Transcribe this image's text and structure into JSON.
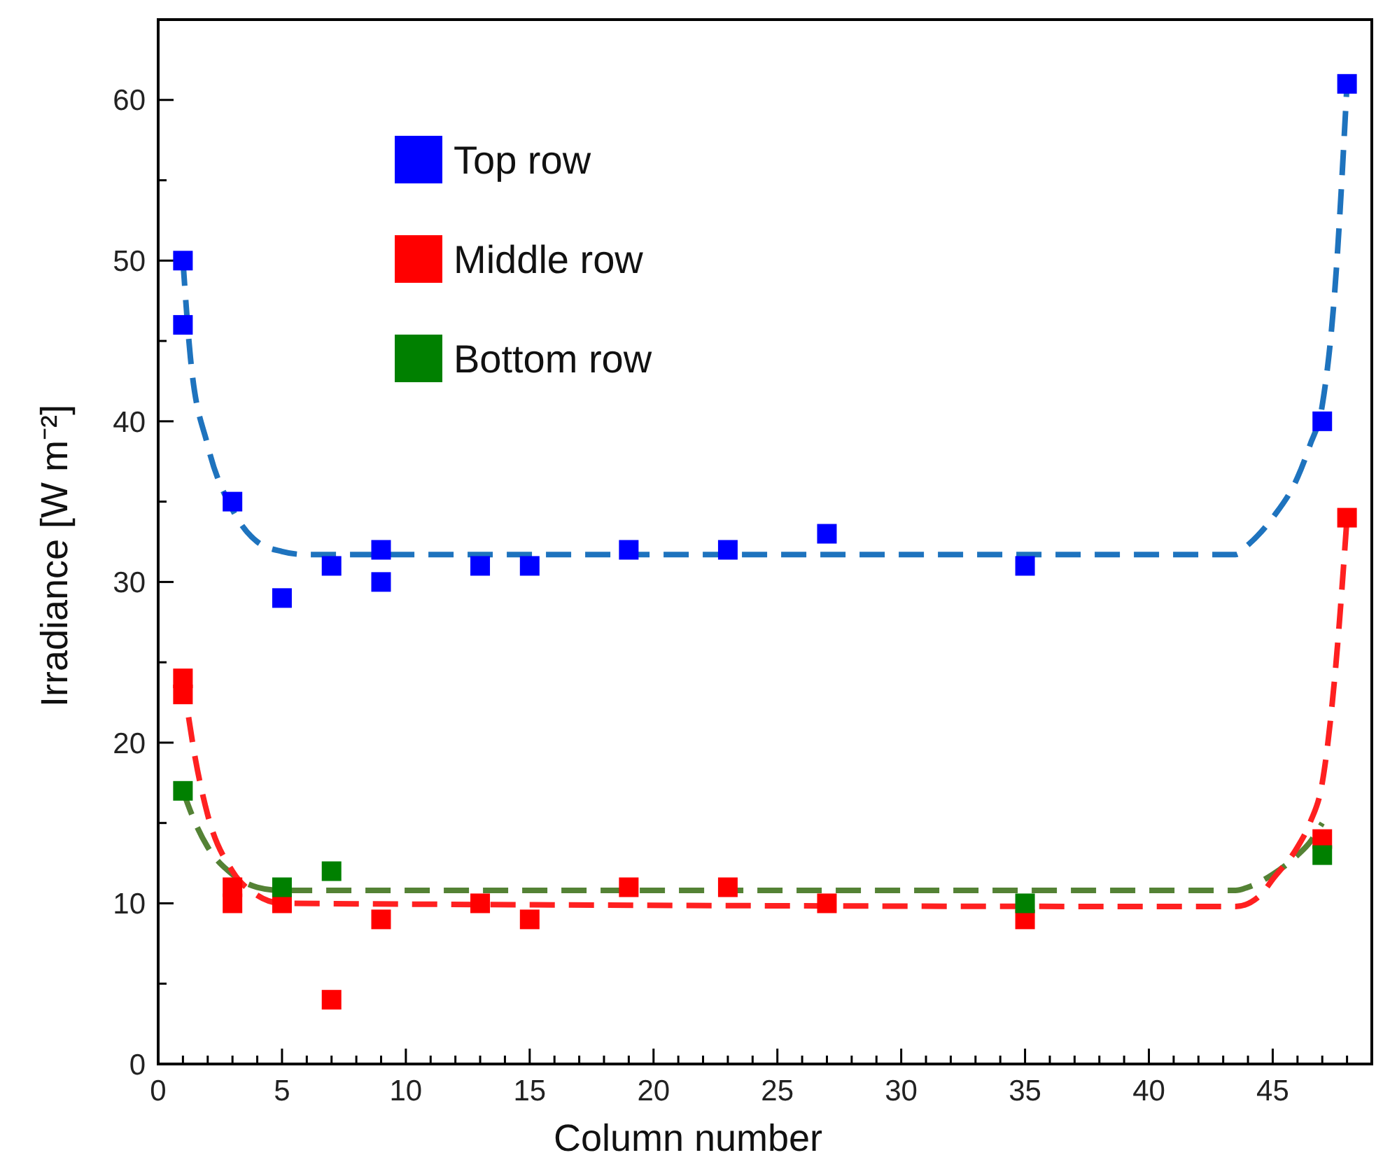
{
  "chart_data": {
    "type": "scatter",
    "xlabel": "Column number",
    "ylabel": "Irradiance [W m⁻²]",
    "xlim": [
      0,
      49
    ],
    "ylim": [
      0,
      65
    ],
    "xticks": [
      0,
      {
        "value": 1,
        "label": null
      },
      {
        "value": 2,
        "label": null
      },
      {
        "value": 3,
        "label": null
      },
      {
        "value": 4,
        "label": null
      },
      5,
      {
        "value": 6,
        "label": null
      },
      {
        "value": 7,
        "label": null
      },
      {
        "value": 8,
        "label": null
      },
      {
        "value": 9,
        "label": null
      },
      10,
      {
        "value": 11,
        "label": null
      },
      {
        "value": 12,
        "label": null
      },
      {
        "value": 13,
        "label": null
      },
      {
        "value": 14,
        "label": null
      },
      15,
      {
        "value": 16,
        "label": null
      },
      {
        "value": 17,
        "label": null
      },
      {
        "value": 18,
        "label": null
      },
      {
        "value": 19,
        "label": null
      },
      20,
      {
        "value": 21,
        "label": null
      },
      {
        "value": 22,
        "label": null
      },
      {
        "value": 23,
        "label": null
      },
      {
        "value": 24,
        "label": null
      },
      25,
      {
        "value": 26,
        "label": null
      },
      {
        "value": 27,
        "label": null
      },
      {
        "value": 28,
        "label": null
      },
      {
        "value": 29,
        "label": null
      },
      30,
      {
        "value": 31,
        "label": null
      },
      {
        "value": 32,
        "label": null
      },
      {
        "value": 33,
        "label": null
      },
      {
        "value": 34,
        "label": null
      },
      35,
      {
        "value": 36,
        "label": null
      },
      {
        "value": 37,
        "label": null
      },
      {
        "value": 38,
        "label": null
      },
      {
        "value": 39,
        "label": null
      },
      40,
      {
        "value": 41,
        "label": null
      },
      {
        "value": 42,
        "label": null
      },
      {
        "value": 43,
        "label": null
      },
      {
        "value": 44,
        "label": null
      },
      45,
      {
        "value": 46,
        "label": null
      },
      {
        "value": 47,
        "label": null
      },
      {
        "value": 48,
        "label": null
      }
    ],
    "yticks": [
      0,
      {
        "value": 5,
        "label": null
      },
      10,
      {
        "value": 15,
        "label": null
      },
      20,
      {
        "value": 25,
        "label": null
      },
      30,
      {
        "value": 35,
        "label": null
      },
      40,
      {
        "value": 45,
        "label": null
      },
      50,
      {
        "value": 55,
        "label": null
      },
      60
    ],
    "grid": false,
    "legend": "top left",
    "marker": "square",
    "series": [
      {
        "type": "scatter",
        "name": "Top row",
        "color": "#0000ff",
        "x": [
          1,
          1,
          3,
          5,
          7,
          9,
          9,
          13,
          15,
          19,
          23,
          27,
          35,
          47,
          48
        ],
        "values": [
          50,
          46,
          35,
          29,
          31,
          32,
          30,
          31,
          31,
          32,
          32,
          33,
          31,
          40,
          61
        ]
      },
      {
        "type": "scatter",
        "name": "Middle row",
        "color": "#ff0000",
        "x": [
          1,
          1,
          3,
          3,
          5,
          7,
          9,
          13,
          15,
          19,
          23,
          27,
          35,
          47,
          48
        ],
        "values": [
          24,
          23,
          11,
          10,
          10,
          4,
          9,
          10,
          9,
          11,
          11,
          10,
          9,
          14,
          34
        ]
      },
      {
        "type": "scatter",
        "name": "Bottom row",
        "color": "#008000",
        "x": [
          1,
          5,
          7,
          35,
          47
        ],
        "values": [
          17,
          11,
          12,
          10,
          13
        ]
      },
      {
        "type": "line",
        "color": "#1e73be",
        "line_style": "dashed",
        "marker": "none",
        "x": [
          1,
          1.3,
          2,
          3,
          4,
          5,
          6,
          43.5,
          44,
          45,
          46,
          46.5,
          47,
          47.5,
          48
        ],
        "values": [
          50,
          44,
          38.5,
          34.5,
          32.5,
          31.9,
          31.7,
          31.7,
          32.3,
          34,
          36.5,
          38.5,
          41,
          48,
          61
        ]
      },
      {
        "type": "line",
        "color": "#548235",
        "line_style": "dashed",
        "marker": "none",
        "x": [
          1,
          1.5,
          2,
          3,
          4,
          5,
          43.5,
          44,
          45,
          46,
          46.5,
          47
        ],
        "values": [
          17,
          15,
          13.5,
          11.8,
          11,
          10.8,
          10.8,
          11,
          11.8,
          13,
          13.8,
          15
        ]
      },
      {
        "type": "line",
        "color": "#ff2020",
        "line_style": "dashed",
        "marker": "none",
        "x": [
          1,
          1.5,
          2,
          3,
          4,
          5,
          43.5,
          44.5,
          45,
          46,
          46.5,
          47,
          47.5,
          48
        ],
        "values": [
          24,
          19,
          15.5,
          12,
          10.5,
          10,
          9.8,
          10.5,
          11.5,
          13.5,
          15,
          17.5,
          24,
          34
        ]
      }
    ]
  }
}
